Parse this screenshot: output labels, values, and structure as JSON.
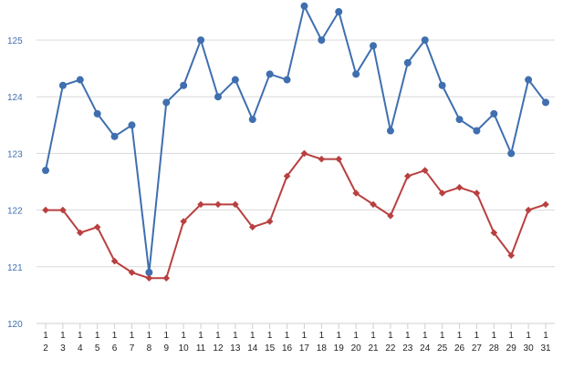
{
  "chart_data": {
    "type": "line",
    "title": "",
    "xlabel": "",
    "ylabel": "",
    "categories": [
      "1\n2",
      "1\n3",
      "1\n4",
      "1\n5",
      "1\n6",
      "1\n7",
      "1\n8",
      "1\n9",
      "1\n10",
      "1\n11",
      "1\n12",
      "1\n13",
      "1\n14",
      "1\n15",
      "1\n16",
      "1\n17",
      "1\n18",
      "1\n19",
      "1\n20",
      "1\n21",
      "1\n22",
      "1\n23",
      "1\n24",
      "1\n25",
      "1\n26",
      "1\n27",
      "1\n28",
      "1\n29",
      "1\n30",
      "1\n31"
    ],
    "ylim": [
      120,
      125.5
    ],
    "yticks": [
      120,
      121,
      122,
      123,
      124,
      125
    ],
    "ytick_labels": [
      "120",
      "121",
      "122",
      "123",
      "124",
      "125"
    ],
    "grid": true,
    "legend": "none",
    "series": [
      {
        "color": "#3f6faf",
        "marker": "circle",
        "values": [
          122.7,
          124.2,
          124.3,
          123.7,
          123.3,
          123.5,
          120.9,
          123.9,
          124.2,
          125.0,
          124.0,
          124.3,
          123.6,
          124.4,
          124.3,
          125.6,
          125.0,
          125.5,
          124.4,
          124.9,
          123.4,
          124.6,
          125.0,
          124.2,
          123.6,
          123.4,
          123.7,
          123.0,
          124.3,
          123.9
        ]
      },
      {
        "color": "#b94040",
        "marker": "diamond",
        "values": [
          122.0,
          122.0,
          121.6,
          121.7,
          121.1,
          120.9,
          120.8,
          120.8,
          121.8,
          122.1,
          122.1,
          122.1,
          121.7,
          121.8,
          122.6,
          123.0,
          122.9,
          122.9,
          122.3,
          122.1,
          121.9,
          122.6,
          122.7,
          122.3,
          122.4,
          122.3,
          121.6,
          121.2,
          122.0,
          122.1
        ]
      }
    ],
    "ytick_color": "#3f6faf"
  }
}
